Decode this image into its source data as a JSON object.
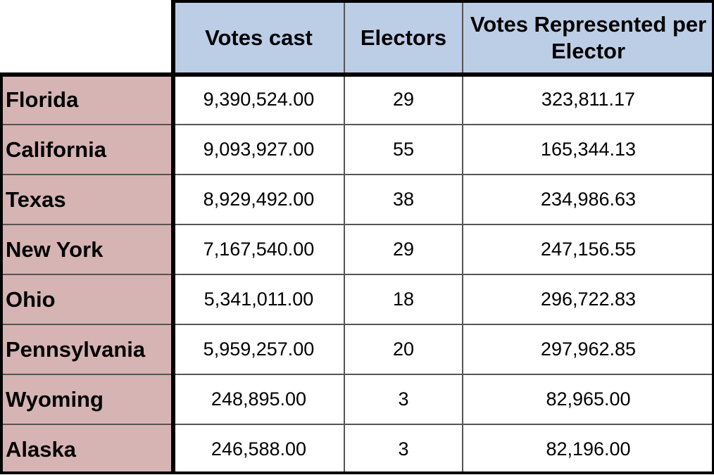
{
  "chart_data": {
    "type": "table",
    "columns": [
      "Votes cast",
      "Electors",
      "Votes Represented per Elector"
    ],
    "rows": [
      {
        "state": "Florida",
        "votes_cast": "9,390,524.00",
        "electors": "29",
        "votes_per_elector": "323,811.17"
      },
      {
        "state": "California",
        "votes_cast": "9,093,927.00",
        "electors": "55",
        "votes_per_elector": "165,344.13"
      },
      {
        "state": "Texas",
        "votes_cast": "8,929,492.00",
        "electors": "38",
        "votes_per_elector": "234,986.63"
      },
      {
        "state": "New York",
        "votes_cast": "7,167,540.00",
        "electors": "29",
        "votes_per_elector": "247,156.55"
      },
      {
        "state": "Ohio",
        "votes_cast": "5,341,011.00",
        "electors": "18",
        "votes_per_elector": "296,722.83"
      },
      {
        "state": "Pennsylvania",
        "votes_cast": "5,959,257.00",
        "electors": "20",
        "votes_per_elector": "297,962.85"
      },
      {
        "state": "Wyoming",
        "votes_cast": "248,895.00",
        "electors": "3",
        "votes_per_elector": "82,965.00"
      },
      {
        "state": "Alaska",
        "votes_cast": "246,588.00",
        "electors": "3",
        "votes_per_elector": "82,196.00"
      }
    ]
  }
}
